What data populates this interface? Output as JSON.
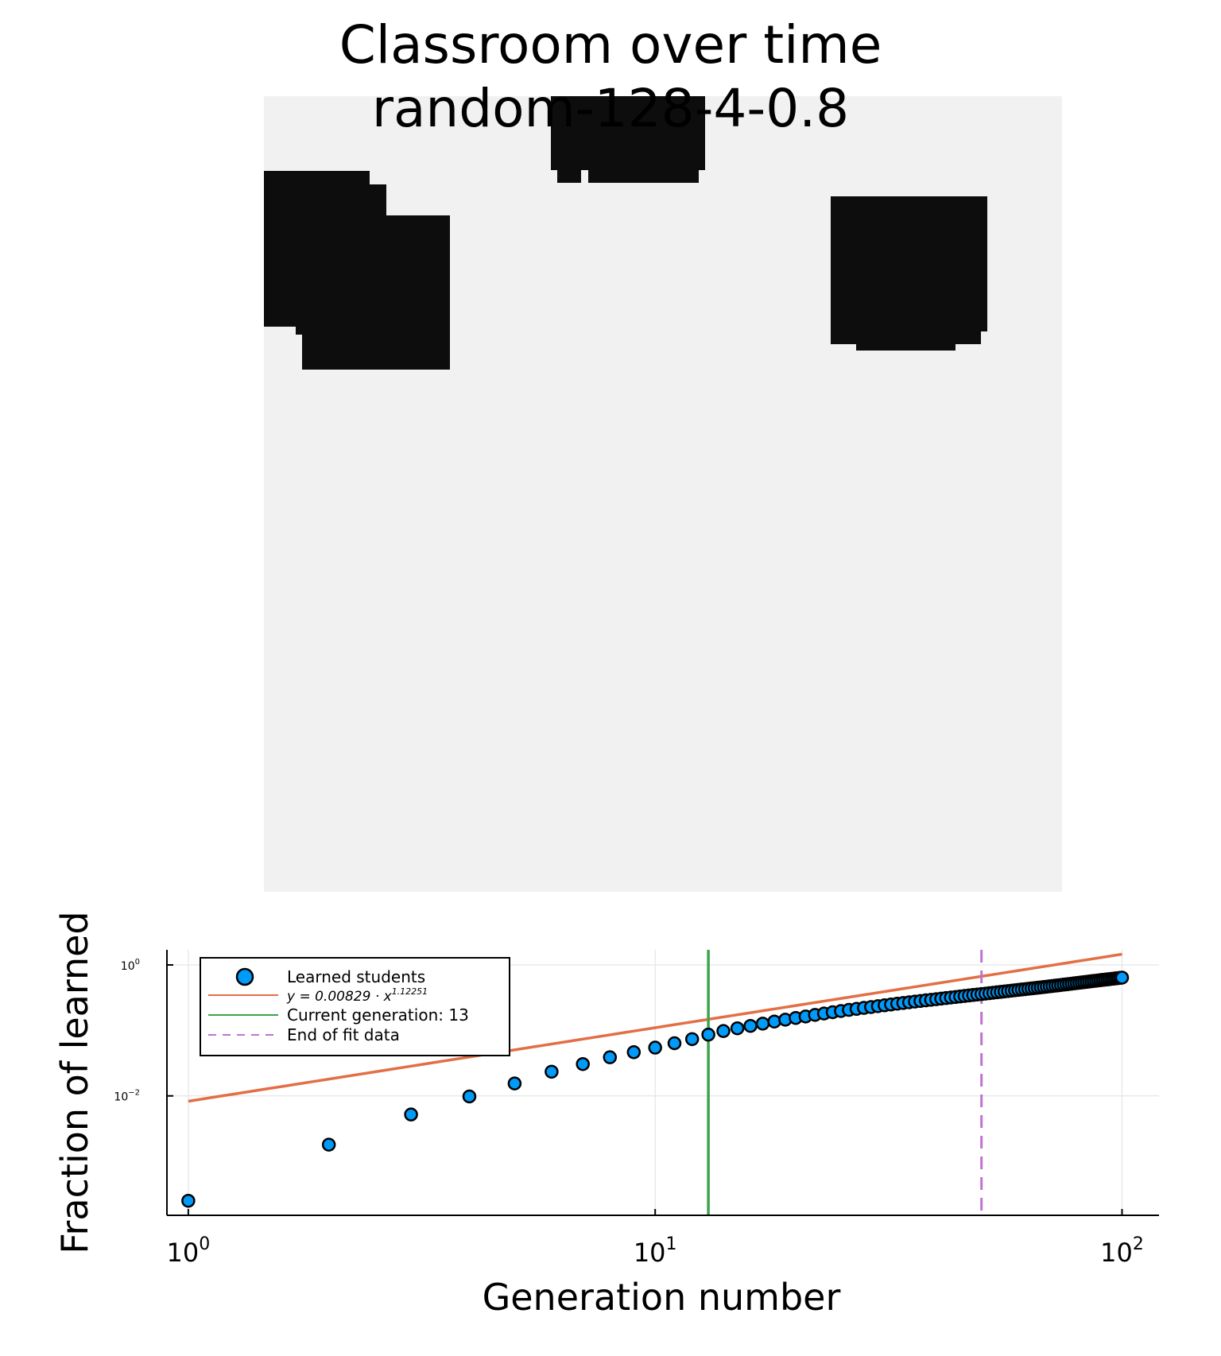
{
  "title": [
    "Classroom over time",
    "random-128-4-0.8"
  ],
  "colors": {
    "background": "#ffffff",
    "classroom_learned": "#0d0d0d",
    "classroom_unlearned": "#f1f1f1",
    "scatter": "#009af9",
    "fit": "#e26f46",
    "current_generation": "#3da44d",
    "end_of_fit": "#c271d2"
  },
  "chart_data": {
    "type": "scatter",
    "x_scale": "log",
    "y_scale": "log",
    "xlabel": "Generation number",
    "ylabel": "Fraction of learned",
    "xlim": [
      0.9,
      120
    ],
    "ylim": [
      0.00015,
      1.7
    ],
    "x_ticks": [
      {
        "value": 1,
        "base": "10",
        "exp": "0"
      },
      {
        "value": 10,
        "base": "10",
        "exp": "1"
      },
      {
        "value": 100,
        "base": "10",
        "exp": "2"
      }
    ],
    "y_ticks": [
      {
        "value": 0.01,
        "base": "10",
        "exp": "−2"
      },
      {
        "value": 1,
        "base": "10",
        "exp": "0"
      }
    ],
    "grid": true,
    "legend_position": "top-left",
    "legend": [
      "Learned students",
      "y = 0.00829 · x",
      "Current generation: 13",
      "End of fit data"
    ],
    "fit_exponent_label": "1.12251",
    "fit": {
      "a": 0.00829,
      "b": 1.12251
    },
    "current_generation": 13,
    "end_of_fit": 50,
    "series": [
      {
        "name": "Learned students",
        "x": [
          1,
          2,
          3,
          4,
          5,
          6,
          7,
          8,
          9,
          10,
          11,
          12,
          13,
          14,
          15,
          16,
          17,
          18,
          19,
          20,
          21,
          22,
          23,
          24,
          25,
          26,
          27,
          28,
          29,
          30,
          31,
          32,
          33,
          34,
          35,
          36,
          37,
          38,
          39,
          40,
          41,
          42,
          43,
          44,
          45,
          46,
          47,
          48,
          49,
          50,
          51,
          52,
          53,
          54,
          55,
          56,
          57,
          58,
          59,
          60,
          61,
          62,
          63,
          64,
          65,
          66,
          67,
          68,
          69,
          70,
          71,
          72,
          73,
          74,
          75,
          76,
          77,
          78,
          79,
          80,
          81,
          82,
          83,
          84,
          85,
          86,
          87,
          88,
          89,
          90,
          91,
          92,
          93,
          94,
          95,
          96,
          97,
          98,
          99,
          100
        ],
        "y": [
          0.00025,
          0.0018,
          0.0052,
          0.0098,
          0.0155,
          0.0234,
          0.0306,
          0.0389,
          0.0465,
          0.0546,
          0.0637,
          0.0736,
          0.0862,
          0.0978,
          0.1076,
          0.1171,
          0.1269,
          0.1366,
          0.1458,
          0.1548,
          0.1633,
          0.1727,
          0.1811,
          0.1898,
          0.1976,
          0.2058,
          0.2131,
          0.2206,
          0.2275,
          0.2346,
          0.2419,
          0.2488,
          0.2557,
          0.2625,
          0.2691,
          0.2754,
          0.2816,
          0.2877,
          0.2937,
          0.2998,
          0.3059,
          0.3118,
          0.3179,
          0.3239,
          0.3298,
          0.3358,
          0.3416,
          0.3474,
          0.3531,
          0.3588,
          0.3646,
          0.3703,
          0.3761,
          0.3819,
          0.3876,
          0.3933,
          0.3989,
          0.4045,
          0.4101,
          0.4157,
          0.4213,
          0.4268,
          0.4323,
          0.4378,
          0.4433,
          0.4488,
          0.4544,
          0.46,
          0.4656,
          0.4712,
          0.4769,
          0.4826,
          0.4883,
          0.494,
          0.4997,
          0.5055,
          0.5113,
          0.5171,
          0.5229,
          0.5287,
          0.5345,
          0.5402,
          0.546,
          0.5517,
          0.5574,
          0.5631,
          0.5688,
          0.5744,
          0.58,
          0.5856,
          0.5911,
          0.5966,
          0.6021,
          0.6075,
          0.6129,
          0.6183,
          0.6236,
          0.6289,
          0.6342,
          0.6394
        ]
      }
    ]
  }
}
